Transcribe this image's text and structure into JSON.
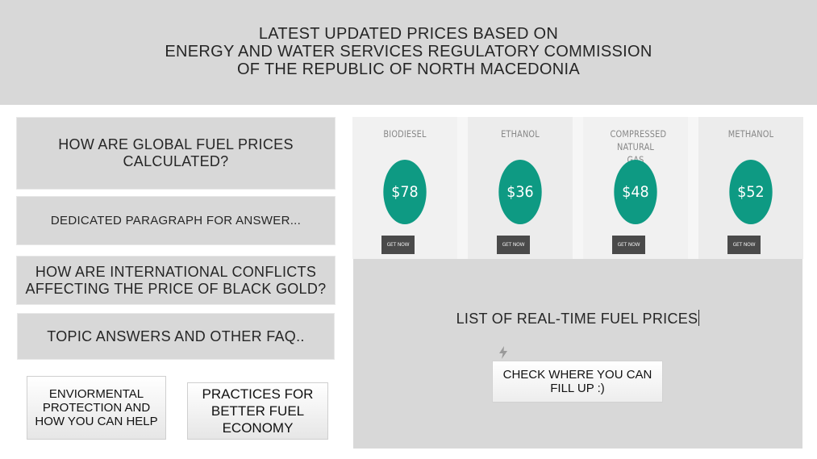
{
  "header": {
    "lines": [
      "LATEST UPDATED PRICES BASED ON",
      "ENERGY AND WATER SERVICES REGULATORY COMMISSION",
      "OF THE REPUBLIC OF NORTH MACEDONIA"
    ]
  },
  "faq": {
    "question_1": "HOW ARE GLOBAL FUEL PRICES CALCULATED?",
    "answer_1": "DEDICATED PARAGRAPH FOR ANSWER...",
    "question_2": "HOW ARE INTERNATIONAL CONFLICTS AFFECTING THE PRICE OF BLACK GOLD?",
    "answer_2": "TOPIC ANSWERS AND OTHER FAQ.."
  },
  "links": {
    "environment": "ENVIORMENTAL PROTECTION AND HOW YOU CAN HELP",
    "practices": "PRACTICES FOR BETTER FUEL ECONOMY"
  },
  "prices": [
    {
      "name": "BIODIESEL",
      "price": "$78",
      "button": "GET NOW"
    },
    {
      "name": "ETHANOL",
      "price": "$36",
      "button": "GET NOW"
    },
    {
      "name": "COMPRESSED NATURAL GAS",
      "price": "$48",
      "button": "GET NOW"
    },
    {
      "name": "METHANOL",
      "price": "$52",
      "button": "GET NOW"
    }
  ],
  "colors": {
    "accent": "#0e9a83",
    "panel": "#d8d8d8",
    "button_dark": "#4a4a4a"
  },
  "list": {
    "title": "LIST OF REAL-TIME FUEL PRICES",
    "icon": "bolt-icon",
    "cta": "CHECK WHERE YOU CAN FILL UP :)"
  }
}
